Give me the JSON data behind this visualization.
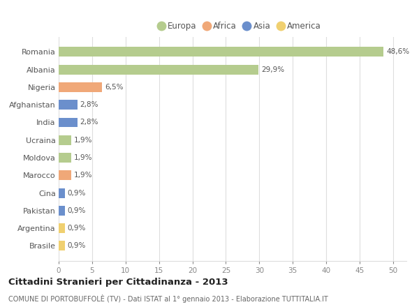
{
  "countries": [
    "Romania",
    "Albania",
    "Nigeria",
    "Afghanistan",
    "India",
    "Ucraina",
    "Moldova",
    "Marocco",
    "Cina",
    "Pakistan",
    "Argentina",
    "Brasile"
  ],
  "values": [
    48.6,
    29.9,
    6.5,
    2.8,
    2.8,
    1.9,
    1.9,
    1.9,
    0.9,
    0.9,
    0.9,
    0.9
  ],
  "labels": [
    "48,6%",
    "29,9%",
    "6,5%",
    "2,8%",
    "2,8%",
    "1,9%",
    "1,9%",
    "1,9%",
    "0,9%",
    "0,9%",
    "0,9%",
    "0,9%"
  ],
  "colors": [
    "#b5cc8e",
    "#b5cc8e",
    "#f0a878",
    "#6b8fcc",
    "#6b8fcc",
    "#b5cc8e",
    "#b5cc8e",
    "#f0a878",
    "#6b8fcc",
    "#6b8fcc",
    "#f0d070",
    "#f0d070"
  ],
  "legend_labels": [
    "Europa",
    "Africa",
    "Asia",
    "America"
  ],
  "legend_colors": [
    "#b5cc8e",
    "#f0a878",
    "#6b8fcc",
    "#f0d070"
  ],
  "title": "Cittadini Stranieri per Cittadinanza - 2013",
  "subtitle": "COMUNE DI PORTOBUFFOLÈ (TV) - Dati ISTAT al 1° gennaio 2013 - Elaborazione TUTTITALIA.IT",
  "xlim": [
    0,
    52
  ],
  "xticks": [
    0,
    5,
    10,
    15,
    20,
    25,
    30,
    35,
    40,
    45,
    50
  ],
  "background_color": "#ffffff",
  "grid_color": "#dddddd"
}
